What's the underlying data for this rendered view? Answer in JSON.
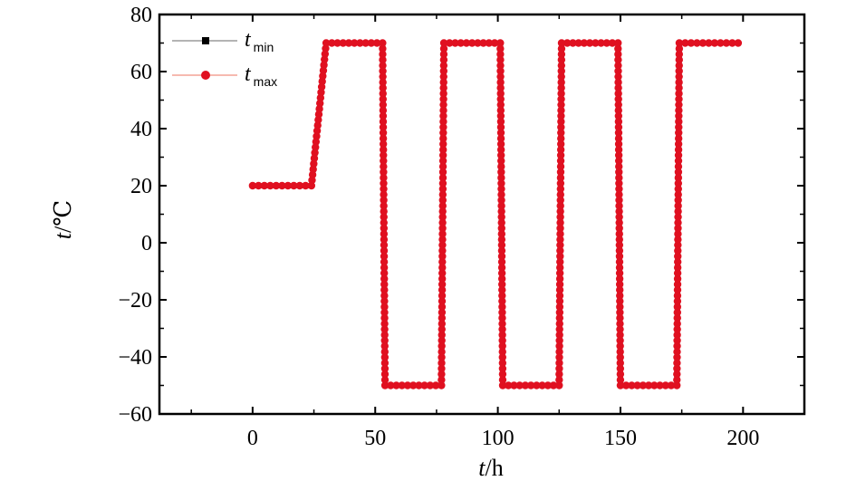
{
  "chart_data": {
    "type": "line",
    "title": "",
    "xlabel_var": "t",
    "xlabel_unit": "/h",
    "ylabel_var": "t",
    "ylabel_unit": "/℃",
    "xlim": [
      -38,
      225
    ],
    "ylim": [
      -60,
      80
    ],
    "xticks": [
      0,
      50,
      100,
      150,
      200
    ],
    "yticks": [
      -60,
      -40,
      -20,
      0,
      20,
      40,
      60,
      80
    ],
    "xtick_labels": [
      "0",
      "50",
      "100",
      "150",
      "200"
    ],
    "ytick_labels": [
      "−60",
      "−40",
      "−20",
      "0",
      "20",
      "40",
      "60",
      "80"
    ],
    "grid": false,
    "legend_position": "top-left",
    "series": [
      {
        "name_var": "t",
        "name_sub": "min",
        "color": "#000000",
        "line_color": "#888888",
        "marker": "square",
        "x": [
          0,
          24,
          30,
          53,
          54,
          77,
          78,
          101,
          102,
          125,
          126,
          149,
          150,
          173,
          174,
          198
        ],
        "y": [
          20,
          20,
          70,
          70,
          -50,
          -50,
          70,
          70,
          -50,
          -50,
          70,
          70,
          -50,
          -50,
          70,
          70
        ]
      },
      {
        "name_var": "t",
        "name_sub": "max",
        "color": "#e01020",
        "line_color": "#f09080",
        "marker": "circle",
        "x": [
          0,
          24,
          30,
          53,
          54,
          77,
          78,
          101,
          102,
          125,
          126,
          149,
          150,
          173,
          174,
          198
        ],
        "y": [
          20,
          20,
          70,
          70,
          -50,
          -50,
          70,
          70,
          -50,
          -50,
          70,
          70,
          -50,
          -50,
          70,
          70
        ]
      }
    ]
  }
}
